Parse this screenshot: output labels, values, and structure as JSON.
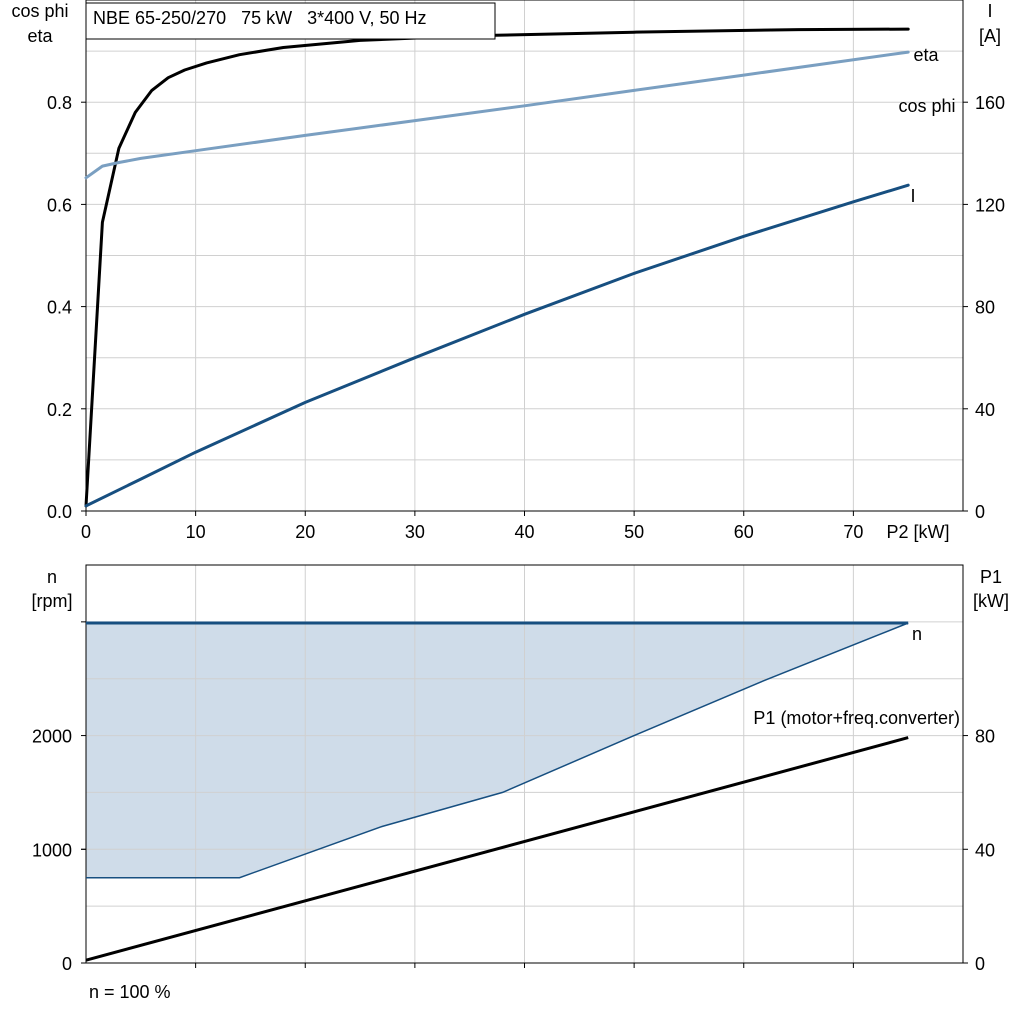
{
  "chart_data": [
    {
      "type": "line",
      "title": "NBE 65-250/270   75 kW   3*400 V, 50 Hz",
      "xlabel": "P2 [kW]",
      "ylabel_left": [
        "cos phi",
        "eta"
      ],
      "ylabel_right": [
        "I",
        "[A]"
      ],
      "xlim": [
        0,
        80
      ],
      "ylim_left": [
        0,
        1.0
      ],
      "ylim_right": [
        0,
        200
      ],
      "x_ticks": [
        "0",
        "10",
        "20",
        "30",
        "40",
        "50",
        "60",
        "70"
      ],
      "y_ticks_left": [
        "0.0",
        "0.2",
        "0.4",
        "0.6",
        "0.8"
      ],
      "y_ticks_right": [
        "0",
        "40",
        "80",
        "120",
        "160"
      ],
      "grid": true,
      "series": [
        {
          "name": "eta",
          "axis": "left",
          "color": "#000000",
          "x": [
            0,
            1.5,
            3,
            4.5,
            6,
            7.5,
            9,
            11,
            14,
            18,
            25,
            35,
            50,
            65,
            75
          ],
          "y": [
            0.01,
            0.565,
            0.71,
            0.78,
            0.823,
            0.848,
            0.863,
            0.877,
            0.893,
            0.907,
            0.921,
            0.93,
            0.937,
            0.942,
            0.943
          ]
        },
        {
          "name": "cos phi",
          "axis": "left",
          "color": "#7a9fc1",
          "x": [
            0,
            1.5,
            3,
            5,
            10,
            20,
            30,
            40,
            50,
            60,
            75
          ],
          "y": [
            0.652,
            0.675,
            0.682,
            0.69,
            0.705,
            0.735,
            0.764,
            0.793,
            0.823,
            0.853,
            0.898
          ]
        },
        {
          "name": "I",
          "axis": "right",
          "color": "#174f80",
          "x": [
            0,
            5,
            10,
            20,
            30,
            40,
            50,
            60,
            70,
            75
          ],
          "y": [
            2,
            12.5,
            23,
            42.5,
            60,
            77,
            93,
            107.5,
            121,
            127.5
          ]
        }
      ]
    },
    {
      "type": "line",
      "xlabel": "",
      "ylabel_left": [
        "n",
        "[rpm]"
      ],
      "ylabel_right": [
        "P1",
        "[kW]"
      ],
      "xlim": [
        0,
        80
      ],
      "ylim_left": [
        0,
        3500
      ],
      "ylim_right": [
        0,
        140
      ],
      "y_ticks_left": [
        "0",
        "1000",
        "2000"
      ],
      "y_ticks_right": [
        "0",
        "40",
        "80"
      ],
      "grid": true,
      "footer": "n = 100 %",
      "area": {
        "name": "n",
        "color": "#174f80",
        "fill": "#cfdce9",
        "upper_y": 2990,
        "lower_x": [
          0,
          14,
          27,
          38,
          50,
          62,
          75
        ],
        "lower_y": [
          750,
          750,
          1200,
          1500,
          2000,
          2490,
          2990
        ]
      },
      "series": [
        {
          "name": "P1 (motor+freq.converter)",
          "axis": "right",
          "color": "#000000",
          "x": [
            0,
            75
          ],
          "y": [
            1,
            79.3
          ]
        }
      ]
    }
  ]
}
